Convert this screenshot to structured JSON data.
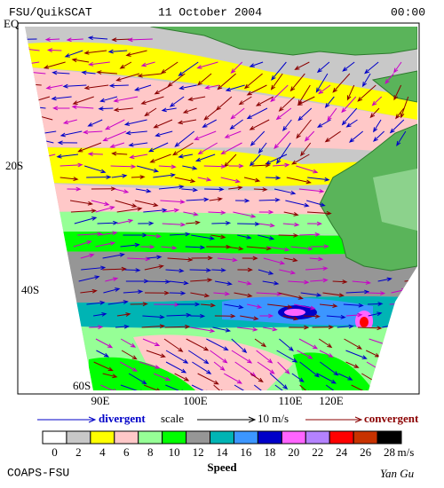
{
  "header": {
    "product": "FSU/QuikSCAT",
    "date": "11 October 2004",
    "time": "00:00"
  },
  "map": {
    "lat_labels": [
      "EQ",
      "20S",
      "40S",
      "60S"
    ],
    "lon_labels": [
      "90E",
      "100E",
      "110E",
      "120E"
    ]
  },
  "scale": {
    "divergent": "divergent",
    "scale": "scale",
    "reference": "10 m/s",
    "convergent": "convergent"
  },
  "colorbar": {
    "labels": [
      0,
      2,
      4,
      6,
      8,
      10,
      12,
      14,
      16,
      18,
      20,
      22,
      24,
      26,
      28
    ],
    "colors": [
      "#ffffff",
      "#c8c8c8",
      "#ffff00",
      "#ffc8c8",
      "#96ff96",
      "#00ff00",
      "#969696",
      "#00b4b4",
      "#3c96ff",
      "#0000c8",
      "#ff64ff",
      "#b482ff",
      "#ff0000",
      "#c83200",
      "#000000"
    ],
    "unit": "m/s",
    "title": "Speed"
  },
  "footer": {
    "left": "COAPS-FSU",
    "right": "Yan Gu"
  }
}
